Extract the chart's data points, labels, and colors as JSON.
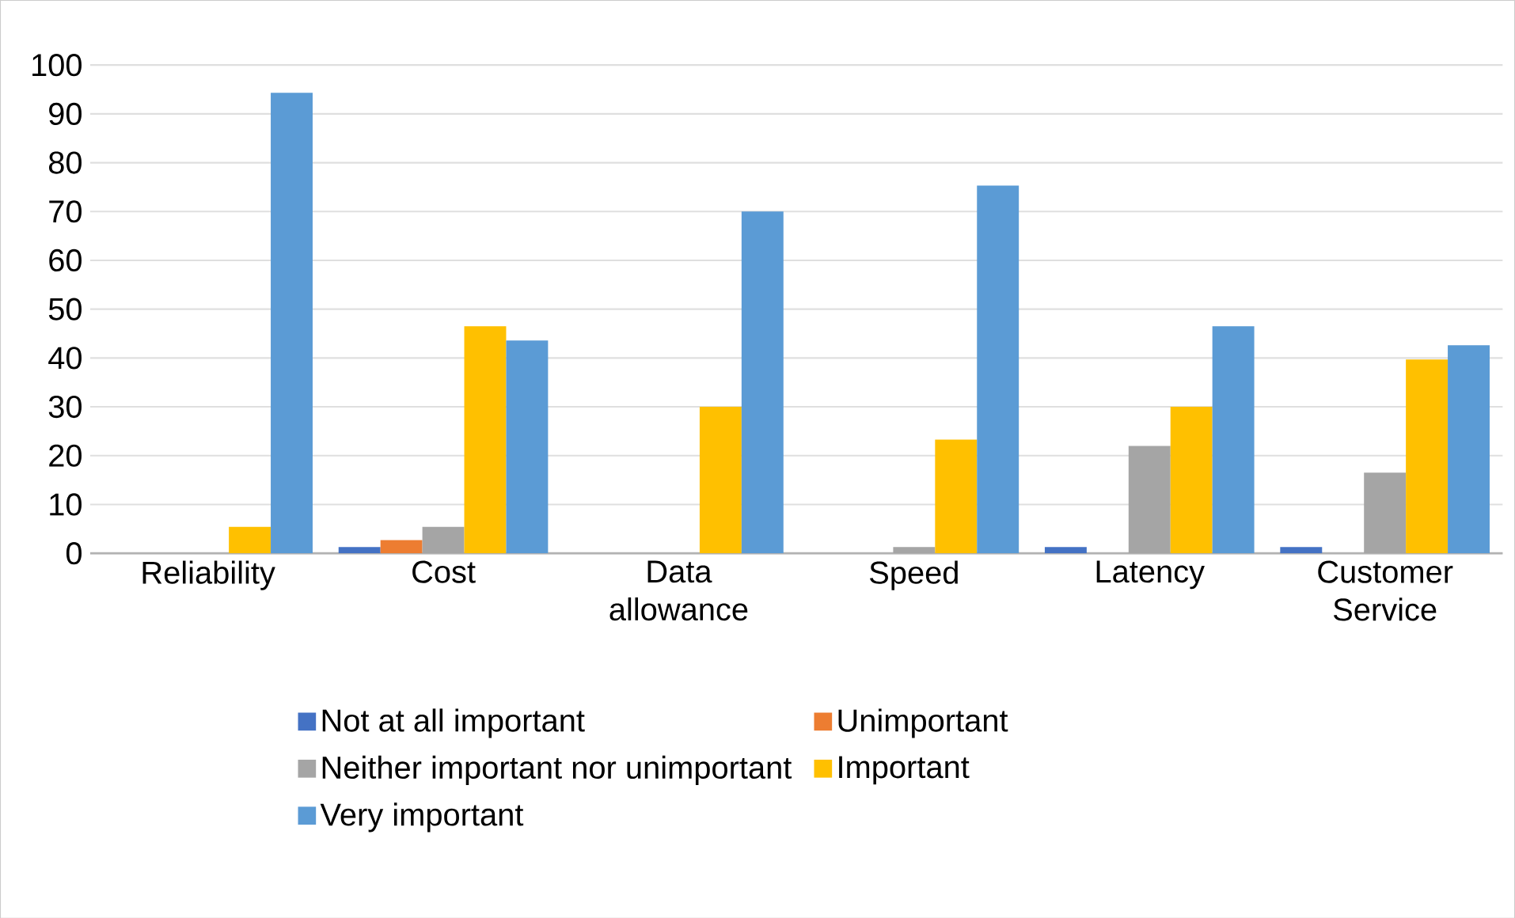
{
  "chart_data": {
    "type": "bar",
    "categories": [
      "Reliability",
      "Cost",
      "Data allowance",
      "Speed",
      "Latency",
      "Customer Service"
    ],
    "series": [
      {
        "name": "Not at all important",
        "color": "#4472c4",
        "values": [
          0,
          1.3,
          0,
          0,
          1.3,
          1.3
        ]
      },
      {
        "name": "Unimportant",
        "color": "#ed7d31",
        "values": [
          0,
          2.7,
          0,
          0,
          0,
          0
        ]
      },
      {
        "name": "Neither important nor unimportant",
        "color": "#a5a5a5",
        "values": [
          0,
          5.4,
          0,
          1.3,
          22,
          16.5
        ]
      },
      {
        "name": "Important",
        "color": "#ffc000",
        "values": [
          5.4,
          46.5,
          30,
          23.3,
          30,
          39.7
        ]
      },
      {
        "name": "Very important",
        "color": "#5b9bd5",
        "values": [
          94.3,
          43.6,
          70,
          75.3,
          46.5,
          42.6
        ]
      }
    ],
    "ylim": [
      0,
      100
    ],
    "yticks": [
      0,
      10,
      20,
      30,
      40,
      50,
      60,
      70,
      80,
      90,
      100
    ],
    "grid": "y",
    "legend": "bottom"
  }
}
